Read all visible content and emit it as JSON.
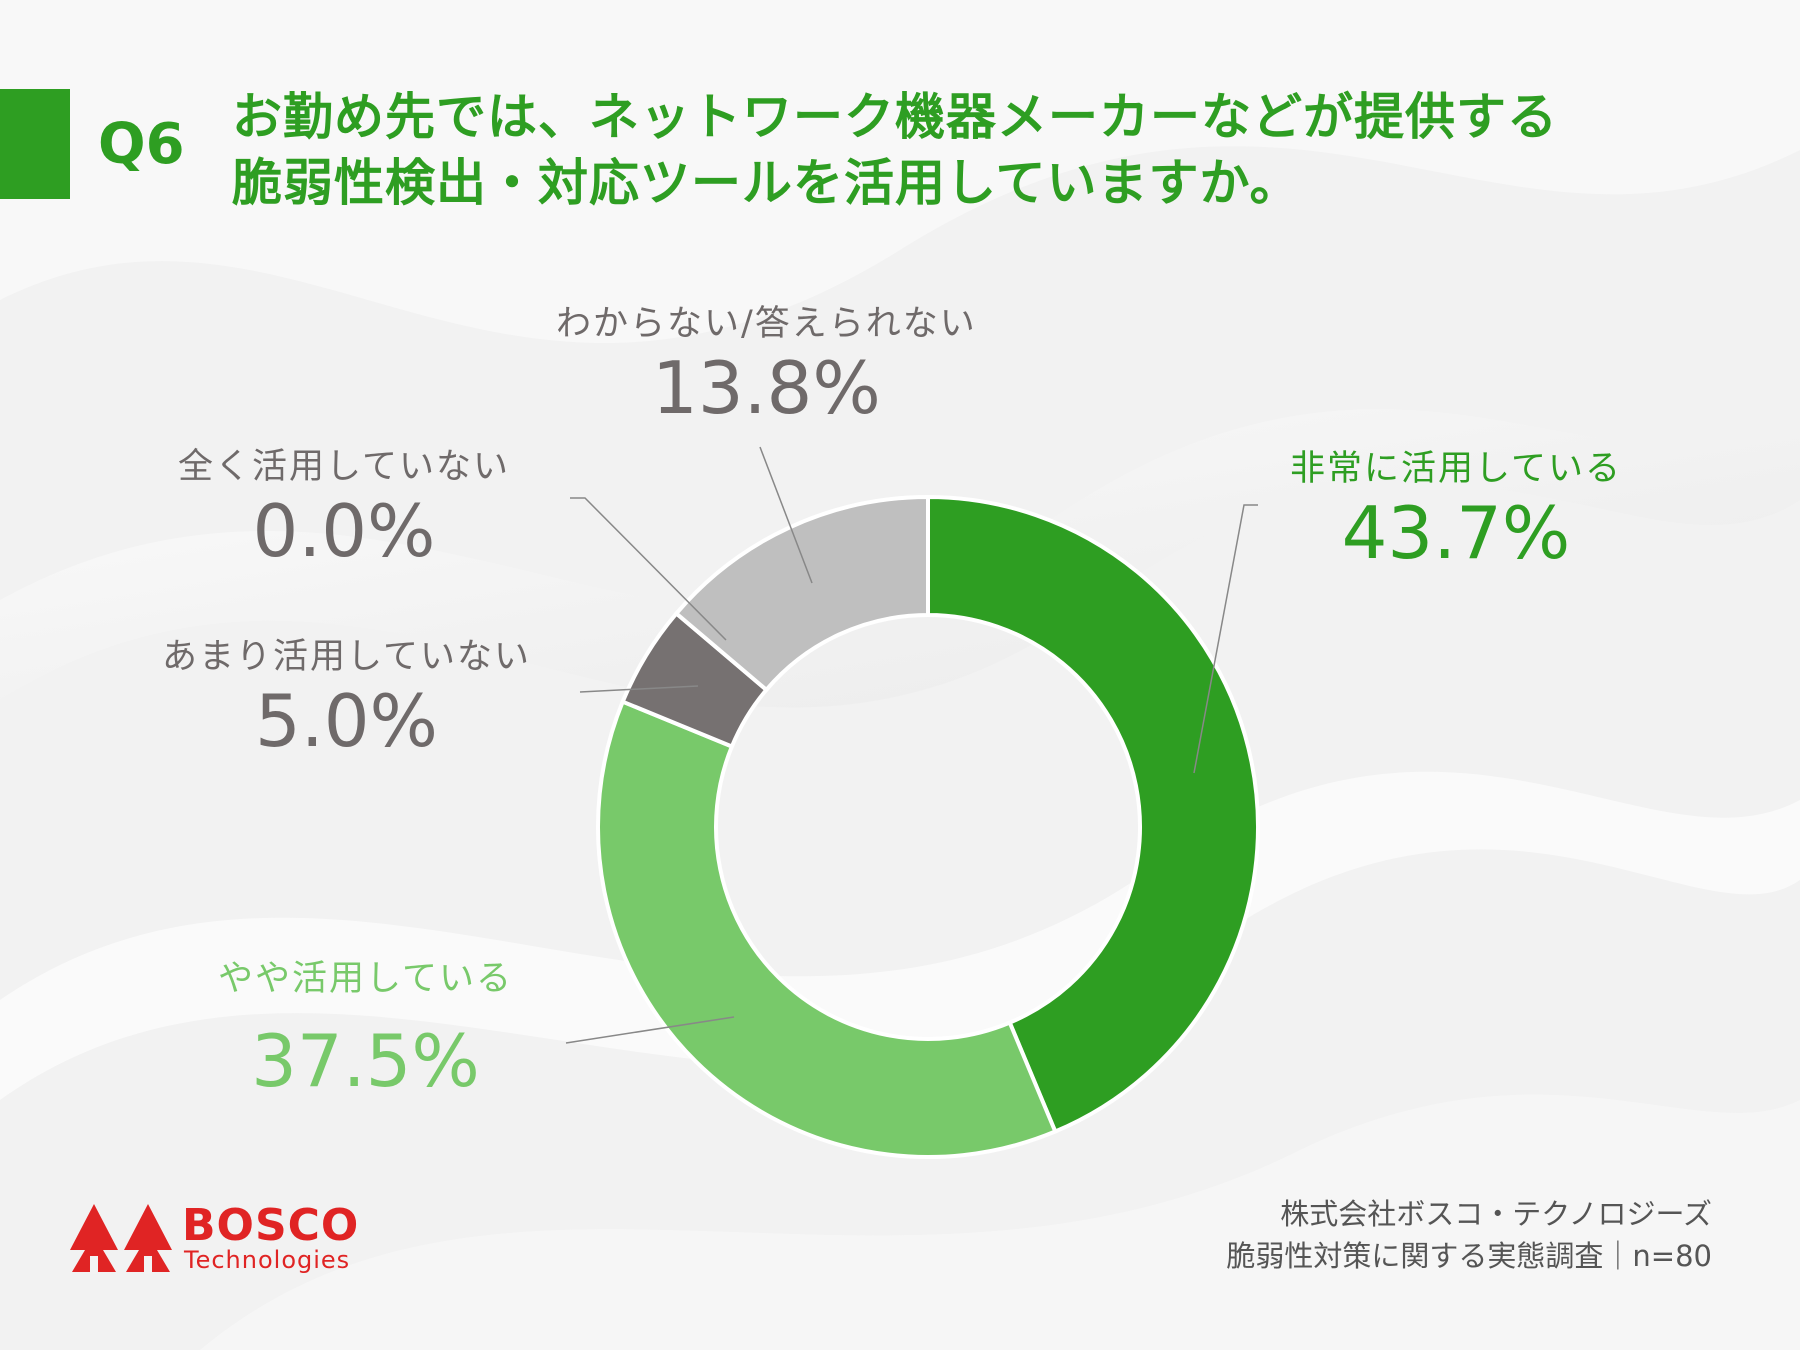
{
  "header": {
    "q_number": "Q6",
    "title_line1": "お勤め先では、ネットワーク機器メーカーなどが提供する",
    "title_line2": "脆弱性検出・対応ツールを活用していますか。"
  },
  "chart_data": {
    "type": "pie",
    "donut": true,
    "categories": [
      "非常に活用している",
      "やや活用している",
      "あまり活用していない",
      "全く活用していない",
      "わからない/答えられない"
    ],
    "values": [
      43.7,
      37.5,
      5.0,
      0.0,
      13.8
    ],
    "value_labels": [
      "43.7%",
      "37.5%",
      "5.0%",
      "0.0%",
      "13.8%"
    ],
    "colors": [
      "#2e9e22",
      "#78c96a",
      "#767171",
      "#5a5a5a",
      "#bfbfbf"
    ]
  },
  "footer": {
    "line1": "株式会社ボスコ・テクノロジーズ",
    "line2": "脆弱性対策に関する実態調査｜n=80"
  },
  "logo": {
    "brand": "BOSCO",
    "sub": "Technologies",
    "color": "#e02424"
  }
}
